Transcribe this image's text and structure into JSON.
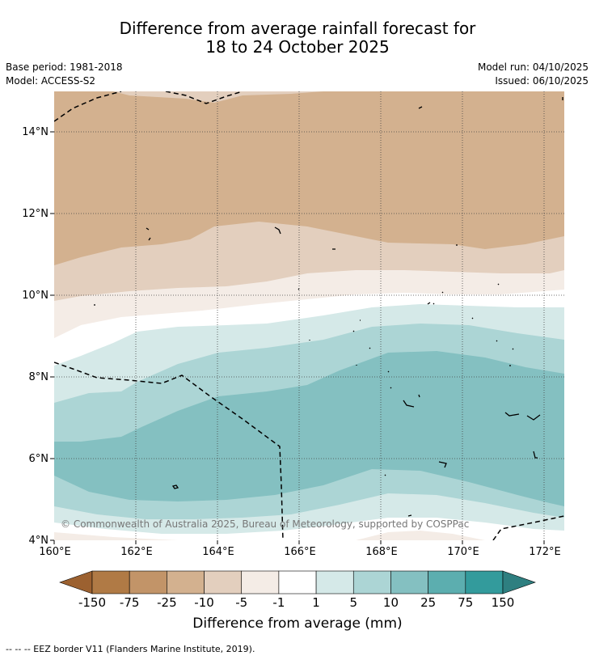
{
  "title": {
    "line1": "Difference from average rainfall forecast for",
    "line2": "18 to 24 October 2025"
  },
  "meta": {
    "base_period": "Base period: 1981-2018",
    "model": "Model: ACCESS-S2",
    "model_run": "Model run: 04/10/2025",
    "issued": "Issued: 06/10/2025"
  },
  "map": {
    "lat_labels": [
      "14°N",
      "12°N",
      "10°N",
      "8°N",
      "6°N",
      "4°N"
    ],
    "lon_labels": [
      "160°E",
      "162°E",
      "164°E",
      "166°E",
      "168°E",
      "170°E",
      "172°E"
    ],
    "copyright": "© Commonwealth of Australia 2025, Bureau of Meteorology, supported by COSPPac"
  },
  "colorbar": {
    "labels": [
      "-150",
      "-75",
      "-25",
      "-10",
      "-5",
      "-1",
      "1",
      "5",
      "10",
      "25",
      "75",
      "150"
    ],
    "colors": [
      "#9c6130",
      "#b07a45",
      "#c29468",
      "#d3b18f",
      "#e3cfbe",
      "#f4ece6",
      "#ffffff",
      "#d5e9e8",
      "#acd5d5",
      "#84c0c1",
      "#5caeaf",
      "#339b9c",
      "#2e7f80"
    ],
    "title": "Difference from average (mm)"
  },
  "footer": "--  --  -- EEZ border V11 (Flanders Marine Institute, 2019)."
}
